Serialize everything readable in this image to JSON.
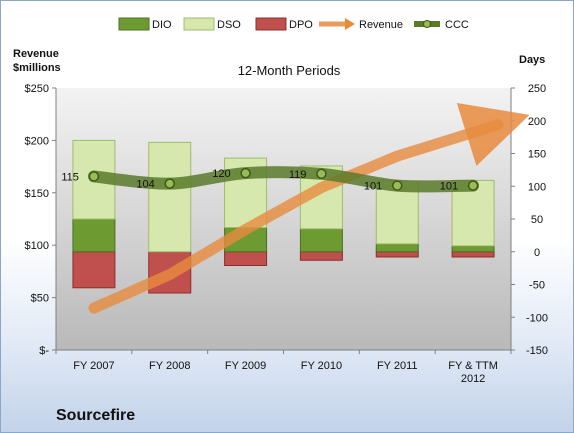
{
  "company": "Sourcefire",
  "chart_data": {
    "type": "bar",
    "title": "12-Month Periods",
    "left_axis_label": [
      "Revenue",
      "$millions"
    ],
    "right_axis_label": "Days",
    "left_ticks": [
      "$-",
      "$50",
      "$100",
      "$150",
      "$200",
      "$250"
    ],
    "left_ylim": [
      0,
      250
    ],
    "right_ticks": [
      "-150",
      "-100",
      "-50",
      "0",
      "50",
      "100",
      "150",
      "200",
      "250"
    ],
    "right_ylim": [
      -150,
      250
    ],
    "categories": [
      [
        "FY 2007"
      ],
      [
        "FY 2008"
      ],
      [
        "FY 2009"
      ],
      [
        "FY 2010"
      ],
      [
        "FY 2011"
      ],
      [
        "FY & TTM",
        "2012"
      ]
    ],
    "legend": [
      "DIO",
      "DSO",
      "DPO",
      "Revenue",
      "CCC"
    ],
    "series": [
      {
        "name": "DIO",
        "kind": "stacked-bar-days",
        "color": "#6e9a32",
        "values": [
          50,
          0,
          37,
          35,
          12,
          9
        ]
      },
      {
        "name": "DSO",
        "kind": "stacked-bar-days",
        "color": "#d7e8ae",
        "values": [
          120,
          167,
          106,
          96,
          96,
          100
        ]
      },
      {
        "name": "DPO",
        "kind": "stacked-bar-days-negative",
        "color": "#c0504d",
        "values": [
          -55,
          -63,
          -21,
          -13,
          -8,
          -8
        ]
      },
      {
        "name": "Revenue",
        "kind": "trend-arrow",
        "color": "#e88b3e",
        "values": [
          40,
          72,
          115,
          155,
          185,
          215
        ]
      },
      {
        "name": "CCC",
        "kind": "line-days",
        "color": "#5a7a2a",
        "values": [
          115,
          104,
          120,
          119,
          101,
          101
        ],
        "labels": [
          "115",
          "104",
          "120",
          "119",
          "101",
          "101"
        ]
      }
    ],
    "grid": false,
    "legend_position": "top"
  }
}
